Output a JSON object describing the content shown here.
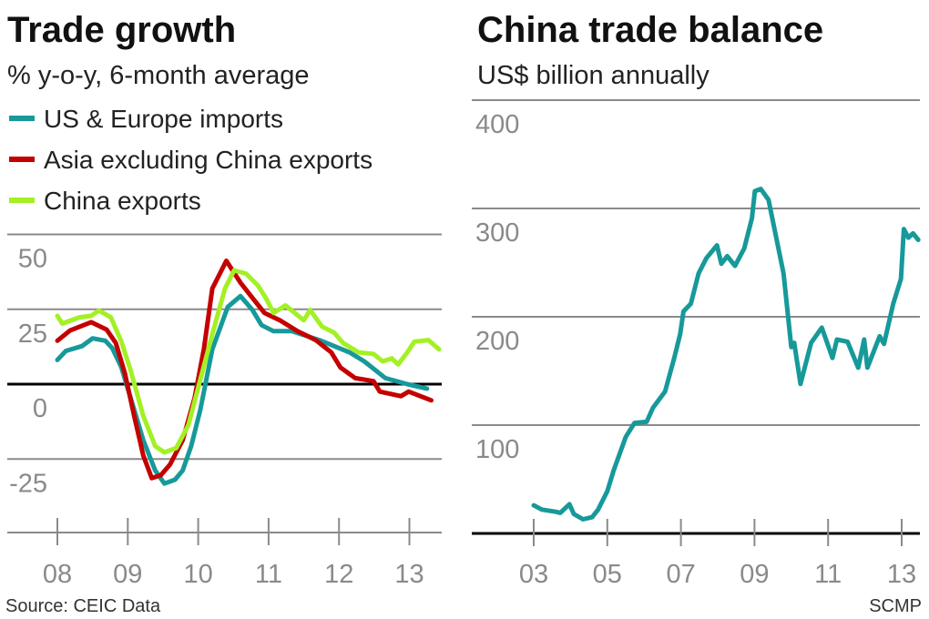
{
  "footer": {
    "source": "Source: CEIC Data",
    "credit": "SCMP"
  },
  "chart_data": [
    {
      "type": "line",
      "title": "Trade growth",
      "subtitle": "% y-o-y, 6-month average",
      "xlim": [
        8,
        13.5
      ],
      "ylim": [
        -50,
        50
      ],
      "x_ticks": [
        8,
        9,
        10,
        11,
        12,
        13
      ],
      "x_tick_labels": [
        "08",
        "09",
        "10",
        "11",
        "12",
        "13"
      ],
      "y_ticks": [
        50,
        25,
        0,
        -25
      ],
      "y_tick_labels": [
        "50",
        "25",
        "0",
        "-25"
      ],
      "grid": true,
      "legend_position": "top-left",
      "series": [
        {
          "name": "US & Europe imports",
          "color": "#17999a",
          "points": [
            [
              8.0,
              8.1
            ],
            [
              8.12,
              11.1
            ],
            [
              8.35,
              12.7
            ],
            [
              8.5,
              15.3
            ],
            [
              8.68,
              14.5
            ],
            [
              8.78,
              12
            ],
            [
              8.91,
              5.6
            ],
            [
              9.04,
              -4.6
            ],
            [
              9.22,
              -18.7
            ],
            [
              9.39,
              -28.8
            ],
            [
              9.52,
              -33.2
            ],
            [
              9.67,
              -31.9
            ],
            [
              9.78,
              -28.8
            ],
            [
              9.9,
              -20.7
            ],
            [
              10.03,
              -8.6
            ],
            [
              10.2,
              11.6
            ],
            [
              10.42,
              25.8
            ],
            [
              10.6,
              29.4
            ],
            [
              10.77,
              24.8
            ],
            [
              10.9,
              19.7
            ],
            [
              11.07,
              17.7
            ],
            [
              11.33,
              17.7
            ],
            [
              11.72,
              14.7
            ],
            [
              12.15,
              10.6
            ],
            [
              12.36,
              7.6
            ],
            [
              12.66,
              2
            ],
            [
              12.97,
              0
            ],
            [
              13.25,
              -1.5
            ]
          ]
        },
        {
          "name": "Asia excluding China exports",
          "color": "#c40000",
          "points": [
            [
              8.0,
              14.5
            ],
            [
              8.18,
              17.9
            ],
            [
              8.48,
              20.7
            ],
            [
              8.7,
              18.2
            ],
            [
              8.83,
              13.7
            ],
            [
              8.96,
              3.5
            ],
            [
              9.09,
              -10.6
            ],
            [
              9.22,
              -23.8
            ],
            [
              9.34,
              -31.4
            ],
            [
              9.47,
              -30.4
            ],
            [
              9.6,
              -26.8
            ],
            [
              9.78,
              -18.7
            ],
            [
              9.95,
              -4.6
            ],
            [
              10.08,
              11.6
            ],
            [
              10.2,
              31.9
            ],
            [
              10.4,
              41.2
            ],
            [
              10.6,
              33.9
            ],
            [
              10.77,
              28.8
            ],
            [
              10.94,
              23.8
            ],
            [
              11.16,
              21.3
            ],
            [
              11.41,
              17.7
            ],
            [
              11.67,
              14.7
            ],
            [
              11.89,
              10.6
            ],
            [
              12.02,
              5.6
            ],
            [
              12.23,
              2
            ],
            [
              12.49,
              1
            ],
            [
              12.58,
              -2.5
            ],
            [
              12.88,
              -4
            ],
            [
              12.99,
              -2.5
            ],
            [
              13.31,
              -5.4
            ]
          ]
        },
        {
          "name": "China exports",
          "color": "#a3f024",
          "points": [
            [
              8.0,
              22.8
            ],
            [
              8.07,
              20.2
            ],
            [
              8.31,
              22.3
            ],
            [
              8.48,
              22.8
            ],
            [
              8.59,
              24.6
            ],
            [
              8.76,
              22.3
            ],
            [
              8.91,
              14.2
            ],
            [
              9.04,
              4.6
            ],
            [
              9.22,
              -10.6
            ],
            [
              9.39,
              -20.7
            ],
            [
              9.52,
              -22.8
            ],
            [
              9.69,
              -21.3
            ],
            [
              9.86,
              -13.7
            ],
            [
              10.03,
              1.5
            ],
            [
              10.2,
              16.7
            ],
            [
              10.38,
              31.9
            ],
            [
              10.51,
              38
            ],
            [
              10.68,
              36.9
            ],
            [
              10.85,
              32.9
            ],
            [
              10.96,
              28.8
            ],
            [
              11.07,
              23.8
            ],
            [
              11.24,
              26.3
            ],
            [
              11.37,
              23.8
            ],
            [
              11.5,
              21.3
            ],
            [
              11.59,
              24.8
            ],
            [
              11.76,
              19.2
            ],
            [
              11.93,
              17.2
            ],
            [
              12.06,
              13.7
            ],
            [
              12.28,
              10.6
            ],
            [
              12.49,
              10.1
            ],
            [
              12.62,
              7.6
            ],
            [
              12.75,
              8.6
            ],
            [
              12.84,
              6.6
            ],
            [
              12.97,
              10.6
            ],
            [
              13.07,
              14.2
            ],
            [
              13.27,
              14.7
            ],
            [
              13.42,
              11.6
            ]
          ]
        }
      ]
    },
    {
      "type": "line",
      "title": "China trade balance",
      "subtitle": "US$ billion annually",
      "xlim": [
        2003,
        2013.5
      ],
      "ylim": [
        0,
        400
      ],
      "x_ticks": [
        3,
        5,
        7,
        9,
        11,
        13
      ],
      "x_tick_labels": [
        "03",
        "05",
        "07",
        "09",
        "11",
        "13"
      ],
      "y_ticks": [
        400,
        300,
        200,
        100
      ],
      "y_tick_labels": [
        "400",
        "300",
        "200",
        "100"
      ],
      "grid": true,
      "series": [
        {
          "color": "#17999a",
          "points": [
            [
              3.0,
              26
            ],
            [
              3.22,
              22
            ],
            [
              3.6,
              20
            ],
            [
              3.72,
              19
            ],
            [
              3.97,
              27
            ],
            [
              4.09,
              18
            ],
            [
              4.34,
              13
            ],
            [
              4.59,
              15
            ],
            [
              4.75,
              22
            ],
            [
              5.0,
              39
            ],
            [
              5.17,
              58
            ],
            [
              5.5,
              89
            ],
            [
              5.74,
              102
            ],
            [
              6.07,
              103
            ],
            [
              6.24,
              116
            ],
            [
              6.57,
              131
            ],
            [
              6.82,
              162
            ],
            [
              6.98,
              184
            ],
            [
              7.07,
              205
            ],
            [
              7.27,
              212
            ],
            [
              7.48,
              240
            ],
            [
              7.69,
              254
            ],
            [
              7.98,
              266
            ],
            [
              8.1,
              249
            ],
            [
              8.26,
              256
            ],
            [
              8.47,
              247
            ],
            [
              8.72,
              263
            ],
            [
              8.93,
              291
            ],
            [
              9.01,
              316
            ],
            [
              9.17,
              318
            ],
            [
              9.38,
              308
            ],
            [
              9.79,
              240
            ],
            [
              10.0,
              172
            ],
            [
              10.08,
              176
            ],
            [
              10.25,
              138
            ],
            [
              10.54,
              176
            ],
            [
              10.83,
              190
            ],
            [
              11.12,
              162
            ],
            [
              11.24,
              179
            ],
            [
              11.53,
              177
            ],
            [
              11.82,
              153
            ],
            [
              11.98,
              179
            ],
            [
              12.07,
              153
            ],
            [
              12.4,
              182
            ],
            [
              12.52,
              175
            ],
            [
              12.77,
              212
            ],
            [
              12.98,
              235
            ],
            [
              13.06,
              281
            ],
            [
              13.18,
              273
            ],
            [
              13.31,
              277
            ],
            [
              13.45,
              271
            ]
          ]
        }
      ]
    }
  ]
}
